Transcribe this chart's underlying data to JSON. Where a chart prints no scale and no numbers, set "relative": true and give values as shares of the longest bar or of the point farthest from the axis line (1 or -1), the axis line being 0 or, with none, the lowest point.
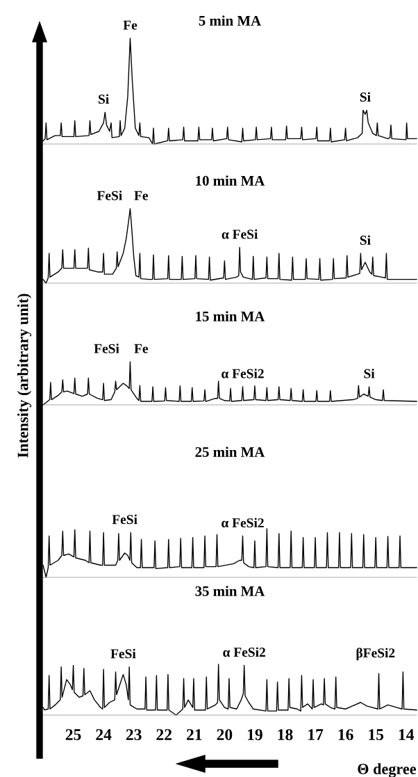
{
  "chart_data": [
    {
      "type": "line",
      "title": "5 min MA",
      "relative": true,
      "xlim": [
        26.0,
        13.65
      ],
      "xticks": [
        25,
        24,
        23,
        22,
        21,
        20,
        19,
        18,
        17,
        16,
        15,
        14
      ],
      "tick_labels": false,
      "line_style": "solid",
      "annotations": [
        {
          "text": "Si",
          "x": 24.0,
          "y": 0.3
        },
        {
          "text": "Fe",
          "x": 23.12,
          "y": 1.0
        },
        {
          "text": "Si",
          "x": 15.35,
          "y": 0.32
        }
      ],
      "series": [
        {
          "color": "#000000",
          "x": [
            26.0,
            25.93,
            25.9,
            25.87,
            25.6,
            25.43,
            25.4,
            25.37,
            24.98,
            24.95,
            24.92,
            24.48,
            24.45,
            24.42,
            24.15,
            24.0,
            23.95,
            23.9,
            23.8,
            23.75,
            23.72,
            23.48,
            23.45,
            23.42,
            23.3,
            23.2,
            23.12,
            23.05,
            22.95,
            22.83,
            22.8,
            22.77,
            22.5,
            22.38,
            22.35,
            22.32,
            21.88,
            21.85,
            21.82,
            21.38,
            21.35,
            21.32,
            20.88,
            20.85,
            20.82,
            20.43,
            20.4,
            20.37,
            19.93,
            19.9,
            19.87,
            19.43,
            19.4,
            19.37,
            18.98,
            18.95,
            18.92,
            18.48,
            18.45,
            18.42,
            17.98,
            17.95,
            17.92,
            17.48,
            17.45,
            17.42,
            16.98,
            16.95,
            16.92,
            16.53,
            16.5,
            16.47,
            16.03,
            16.0,
            15.97,
            15.6,
            15.45,
            15.42,
            15.35,
            15.3,
            15.25,
            15.1,
            14.98,
            14.95,
            14.92,
            14.6,
            14.53,
            14.5,
            14.47,
            14.0,
            13.98,
            13.95,
            13.65
          ],
          "values": [
            0.03,
            0.05,
            0.2,
            0.04,
            0.08,
            0.08,
            0.2,
            0.07,
            0.07,
            0.22,
            0.07,
            0.08,
            0.22,
            0.09,
            0.12,
            0.2,
            0.3,
            0.18,
            0.12,
            0.2,
            0.06,
            0.07,
            0.22,
            0.08,
            0.15,
            0.45,
            1.0,
            0.6,
            0.15,
            0.08,
            0.2,
            0.07,
            0.06,
            0,
            0.15,
            0,
            0.03,
            0.15,
            0.03,
            0.04,
            0.16,
            0.03,
            0.03,
            0.16,
            0.04,
            0.04,
            0.15,
            0.03,
            0.05,
            0.16,
            0.04,
            0.02,
            0.15,
            0.03,
            0.04,
            0.16,
            0.04,
            0.05,
            0.16,
            0.04,
            0.04,
            0.17,
            0.05,
            0.05,
            0.16,
            0.04,
            0.05,
            0.16,
            0.03,
            0.03,
            0.15,
            0.02,
            0.04,
            0.15,
            0.03,
            0.06,
            0.1,
            0.32,
            0.28,
            0.32,
            0.2,
            0.1,
            0.08,
            0.2,
            0.08,
            0.05,
            0.06,
            0.18,
            0.05,
            0.04,
            0.2,
            0.05,
            0.05
          ]
        }
      ]
    },
    {
      "type": "line",
      "title": "10 min MA",
      "relative": true,
      "xlim": [
        26.0,
        13.65
      ],
      "xticks": [
        25,
        24,
        23,
        22,
        21,
        20,
        19,
        18,
        17,
        16,
        15,
        14
      ],
      "tick_labels": false,
      "line_style": "solid",
      "annotations": [
        {
          "text": "FeSi",
          "x": 23.25,
          "y": 0.6
        },
        {
          "text": "Fe",
          "x": 23.12,
          "y": 1.0
        },
        {
          "text": "α FeSi",
          "x": 19.5,
          "y": 0.48
        },
        {
          "text": "Si",
          "x": 15.35,
          "y": 0.28
        }
      ],
      "series": [
        {
          "color": "#000000",
          "x": [
            26.0,
            25.9,
            25.83,
            25.8,
            25.77,
            25.5,
            25.38,
            25.35,
            25.32,
            24.98,
            24.95,
            24.92,
            24.53,
            24.5,
            24.47,
            24.2,
            24.03,
            24.0,
            23.97,
            23.7,
            23.58,
            23.55,
            23.52,
            23.35,
            23.25,
            23.15,
            23.12,
            23.08,
            23.0,
            22.93,
            22.83,
            22.8,
            22.77,
            22.5,
            22.38,
            22.35,
            22.32,
            21.88,
            21.85,
            21.82,
            21.43,
            21.4,
            21.37,
            20.98,
            20.95,
            20.92,
            20.53,
            20.5,
            20.47,
            20.03,
            20.0,
            19.97,
            19.6,
            19.53,
            19.5,
            19.47,
            19.38,
            19.08,
            19.05,
            19.02,
            18.63,
            18.6,
            18.57,
            18.23,
            18.2,
            18.17,
            17.78,
            17.75,
            17.72,
            17.33,
            17.3,
            17.27,
            16.88,
            16.85,
            16.82,
            16.43,
            16.4,
            16.37,
            15.98,
            15.95,
            15.92,
            15.6,
            15.53,
            15.5,
            15.47,
            15.35,
            15.2,
            15.13,
            15.1,
            15.07,
            14.8,
            14.68,
            14.65,
            14.62,
            14.0,
            13.65
          ],
          "values": [
            0.05,
            0,
            0.07,
            0.4,
            0.08,
            0.15,
            0.2,
            0.45,
            0.2,
            0.2,
            0.45,
            0.2,
            0.2,
            0.47,
            0.18,
            0.15,
            0.15,
            0.4,
            0.12,
            0.12,
            0.2,
            0.42,
            0.22,
            0.4,
            0.6,
            0.9,
            1.0,
            0.8,
            0.35,
            0.1,
            0.08,
            0.4,
            0.06,
            0.05,
            0.05,
            0.38,
            0.05,
            0.06,
            0.37,
            0.05,
            0.05,
            0.36,
            0.05,
            0.06,
            0.37,
            0.06,
            0.05,
            0.35,
            0.04,
            0.07,
            0.3,
            0.05,
            0.08,
            0.1,
            0.48,
            0.15,
            0.08,
            0.05,
            0.36,
            0.05,
            0.07,
            0.35,
            0.06,
            0.06,
            0.4,
            0.05,
            0.04,
            0.35,
            0.05,
            0.05,
            0.33,
            0.06,
            0.05,
            0.33,
            0.04,
            0.05,
            0.33,
            0.06,
            0.07,
            0.37,
            0.08,
            0.12,
            0.13,
            0.4,
            0.18,
            0.28,
            0.15,
            0.12,
            0.35,
            0.1,
            0.08,
            0.07,
            0.4,
            0.05,
            0.05,
            0.05
          ]
        }
      ]
    },
    {
      "type": "line",
      "title": "15 min MA",
      "ylabel": "Intensity (arbitrary unit)",
      "relative": true,
      "xlim": [
        26.0,
        13.65
      ],
      "xticks": [
        25,
        24,
        23,
        22,
        21,
        20,
        19,
        18,
        17,
        16,
        15,
        14
      ],
      "tick_labels": false,
      "line_style": "solid",
      "annotations": [
        {
          "text": "FeSi",
          "x": 23.35,
          "y": 0.5
        },
        {
          "text": "Fe",
          "x": 23.12,
          "y": 1.0
        },
        {
          "text": "α FeSi2",
          "x": 19.4,
          "y": 0.42
        },
        {
          "text": "Si",
          "x": 15.22,
          "y": 0.42
        }
      ],
      "series": [
        {
          "color": "#000000",
          "x": [
            26.0,
            25.85,
            25.78,
            25.75,
            25.72,
            25.5,
            25.38,
            25.35,
            25.32,
            25.2,
            24.98,
            24.95,
            24.92,
            24.7,
            24.53,
            24.5,
            24.47,
            24.2,
            24.03,
            24.0,
            23.97,
            23.75,
            23.63,
            23.6,
            23.57,
            23.35,
            23.25,
            23.15,
            23.12,
            23.09,
            22.9,
            22.83,
            22.8,
            22.77,
            22.4,
            22.37,
            22.34,
            21.98,
            21.95,
            21.92,
            21.5,
            21.47,
            21.44,
            21.1,
            21.07,
            21.04,
            20.68,
            20.65,
            20.62,
            20.3,
            20.23,
            20.2,
            20.17,
            20.0,
            19.83,
            19.8,
            19.77,
            19.43,
            19.4,
            19.37,
            19.03,
            19.0,
            18.97,
            18.63,
            18.6,
            18.57,
            18.23,
            18.2,
            18.17,
            17.83,
            17.8,
            17.77,
            17.43,
            17.4,
            17.37,
            16.98,
            16.95,
            16.92,
            16.53,
            16.5,
            16.47,
            15.75,
            15.6,
            15.57,
            15.54,
            15.4,
            15.25,
            15.22,
            15.19,
            15.0,
            14.78,
            14.75,
            14.72,
            13.65
          ],
          "values": [
            0,
            0.08,
            0.12,
            0.52,
            0.12,
            0.22,
            0.3,
            0.58,
            0.3,
            0.32,
            0.26,
            0.62,
            0.25,
            0.2,
            0.25,
            0.62,
            0.25,
            0.15,
            0.12,
            0.5,
            0.1,
            0.12,
            0.3,
            0.55,
            0.35,
            0.5,
            0.45,
            0.38,
            1.0,
            0.35,
            0.15,
            0.1,
            0.45,
            0.08,
            0.08,
            0.42,
            0.08,
            0.09,
            0.4,
            0.1,
            0.08,
            0.44,
            0.08,
            0.08,
            0.4,
            0.08,
            0.09,
            0.35,
            0.08,
            0.15,
            0.15,
            0.55,
            0.15,
            0.1,
            0.09,
            0.38,
            0.08,
            0.1,
            0.42,
            0.1,
            0.12,
            0.44,
            0.12,
            0.1,
            0.4,
            0.1,
            0.12,
            0.42,
            0.12,
            0.1,
            0.38,
            0.1,
            0.08,
            0.35,
            0.08,
            0.08,
            0.33,
            0.08,
            0.08,
            0.33,
            0.08,
            0.12,
            0.15,
            0.45,
            0.18,
            0.25,
            0.2,
            0.42,
            0.18,
            0.12,
            0.1,
            0.35,
            0.1,
            0.08
          ]
        }
      ]
    },
    {
      "type": "line",
      "title": "25 min MA",
      "relative": true,
      "xlim": [
        26.0,
        13.65
      ],
      "xticks": [
        25,
        24,
        23,
        22,
        21,
        20,
        19,
        18,
        17,
        16,
        15,
        14
      ],
      "tick_labels": false,
      "line_style": "solid",
      "annotations": [
        {
          "text": "FeSi",
          "x": 23.3,
          "y": 0.5
        },
        {
          "text": "α FeSi2",
          "x": 19.4,
          "y": 0.85
        }
      ],
      "series": [
        {
          "color": "#000000",
          "x": [
            26.0,
            25.9,
            25.83,
            25.8,
            25.77,
            25.5,
            25.38,
            25.35,
            25.32,
            25.15,
            24.98,
            24.95,
            24.92,
            24.6,
            24.48,
            24.45,
            24.42,
            24.1,
            24.03,
            24.0,
            23.97,
            23.6,
            23.53,
            23.5,
            23.47,
            23.3,
            23.2,
            23.13,
            23.1,
            23.07,
            22.9,
            22.78,
            22.75,
            22.72,
            22.33,
            22.3,
            22.27,
            21.88,
            21.85,
            21.82,
            21.48,
            21.45,
            21.42,
            21.08,
            21.05,
            21.02,
            20.68,
            20.65,
            20.62,
            20.28,
            20.25,
            20.22,
            19.7,
            19.5,
            19.43,
            19.4,
            19.37,
            19.2,
            19.03,
            19.0,
            18.97,
            18.63,
            18.6,
            18.57,
            18.23,
            18.2,
            18.17,
            17.83,
            17.8,
            17.77,
            17.43,
            17.4,
            17.37,
            17.03,
            17.0,
            16.97,
            16.63,
            16.6,
            16.57,
            16.23,
            16.2,
            16.17,
            15.83,
            15.8,
            15.77,
            15.43,
            15.4,
            15.37,
            15.03,
            15.0,
            14.97,
            14.63,
            14.6,
            14.57,
            14.23,
            14.2,
            14.17,
            13.65
          ],
          "values": [
            0.25,
            0,
            0.2,
            0.85,
            0.25,
            0.35,
            0.45,
            0.95,
            0.45,
            0.48,
            0.42,
            0.98,
            0.4,
            0.35,
            0.3,
            0.95,
            0.3,
            0.25,
            0.25,
            0.92,
            0.25,
            0.25,
            0.35,
            0.9,
            0.35,
            0.5,
            0.45,
            0.35,
            0.92,
            0.3,
            0.2,
            0.2,
            0.78,
            0.2,
            0.2,
            0.75,
            0.18,
            0.2,
            0.78,
            0.2,
            0.22,
            0.8,
            0.2,
            0.2,
            0.82,
            0.2,
            0.2,
            0.85,
            0.22,
            0.22,
            0.88,
            0.22,
            0.28,
            0.35,
            0.35,
            0.85,
            0.3,
            0.22,
            0.2,
            0.75,
            0.2,
            0.22,
            1.0,
            0.22,
            0.2,
            0.9,
            0.2,
            0.2,
            0.95,
            0.2,
            0.2,
            0.82,
            0.2,
            0.2,
            0.82,
            0.2,
            0.2,
            0.92,
            0.2,
            0.2,
            0.92,
            0.2,
            0.2,
            0.9,
            0.2,
            0.2,
            0.88,
            0.2,
            0.2,
            0.82,
            0.2,
            0.2,
            0.84,
            0.2,
            0.2,
            0.85,
            0.2,
            0.2
          ]
        }
      ]
    },
    {
      "type": "line",
      "title": "35 min MA",
      "xlabel": "Θ degree",
      "relative": true,
      "xlim": [
        26.0,
        13.65
      ],
      "xticks": [
        25,
        24,
        23,
        22,
        21,
        20,
        19,
        18,
        17,
        16,
        15,
        14
      ],
      "tick_labels": "x",
      "line_style": "solid",
      "annotations": [
        {
          "text": "FeSi",
          "x": 23.35,
          "y": 0.8
        },
        {
          "text": "α FeSi2",
          "x": 19.35,
          "y": 0.98
        },
        "βFeSi2"
      ],
      "series": [
        {
          "color": "#000000",
          "x": [
            26.0,
            25.95,
            25.83,
            25.8,
            25.77,
            25.6,
            25.43,
            25.4,
            25.37,
            25.22,
            25.1,
            25.03,
            25.0,
            24.97,
            24.8,
            24.68,
            24.65,
            24.62,
            24.45,
            24.3,
            24.1,
            24.03,
            24.0,
            23.97,
            23.8,
            23.63,
            23.6,
            23.57,
            23.45,
            23.35,
            23.25,
            23.18,
            23.15,
            23.12,
            22.9,
            22.63,
            22.6,
            22.57,
            22.28,
            22.25,
            22.22,
            21.9,
            21.87,
            21.84,
            21.6,
            21.38,
            21.35,
            21.32,
            21.2,
            21.05,
            21.02,
            20.99,
            20.7,
            20.63,
            20.6,
            20.57,
            20.3,
            20.23,
            20.2,
            20.17,
            20.0,
            19.88,
            19.85,
            19.82,
            19.6,
            19.45,
            19.38,
            19.35,
            19.32,
            19.2,
            19.05,
            18.63,
            18.6,
            18.57,
            18.28,
            18.25,
            18.22,
            17.9,
            17.87,
            17.84,
            17.6,
            17.48,
            17.45,
            17.42,
            17.25,
            17.1,
            17.07,
            17.04,
            16.8,
            16.73,
            16.7,
            16.67,
            16.5,
            16.35,
            16.32,
            16.29,
            16.0,
            15.5,
            15.3,
            14.93,
            14.9,
            14.87,
            14.6,
            14.3,
            14.13,
            14.1,
            14.07,
            13.65
          ],
          "values": [
            0.15,
            0.1,
            0.12,
            0.78,
            0.12,
            0.2,
            0.3,
            0.95,
            0.35,
            0.7,
            0.6,
            0.5,
            0.98,
            0.45,
            0.35,
            0.38,
            0.92,
            0.4,
            0.48,
            0.3,
            0.15,
            0.12,
            0.9,
            0.15,
            0.25,
            0.3,
            0.85,
            0.4,
            0.62,
            0.8,
            0.6,
            0.3,
            0.95,
            0.2,
            0.12,
            0.12,
            0.75,
            0.1,
            0.1,
            0.78,
            0.1,
            0.1,
            0.8,
            0.1,
            0,
            0.12,
            0.72,
            0.15,
            0.3,
            0.15,
            0.72,
            0.1,
            0.1,
            0.1,
            0.75,
            0.12,
            0.2,
            0.25,
            1.0,
            0.3,
            0.15,
            0.12,
            0.72,
            0.15,
            0.12,
            0.3,
            0.42,
            0.98,
            0.38,
            0.25,
            0.12,
            0.08,
            0.7,
            0.08,
            0.08,
            0.65,
            0.1,
            0.1,
            0.72,
            0.15,
            0.12,
            0.08,
            0.78,
            0.15,
            0.22,
            0.12,
            0.7,
            0.15,
            0.22,
            0.2,
            0.72,
            0.22,
            0.15,
            0.12,
            0.75,
            0.15,
            0.12,
            0.25,
            0.18,
            0.12,
            0.82,
            0.12,
            0.2,
            0.15,
            0.12,
            0.85,
            0.12,
            0.1
          ]
        }
      ]
    }
  ]
}
